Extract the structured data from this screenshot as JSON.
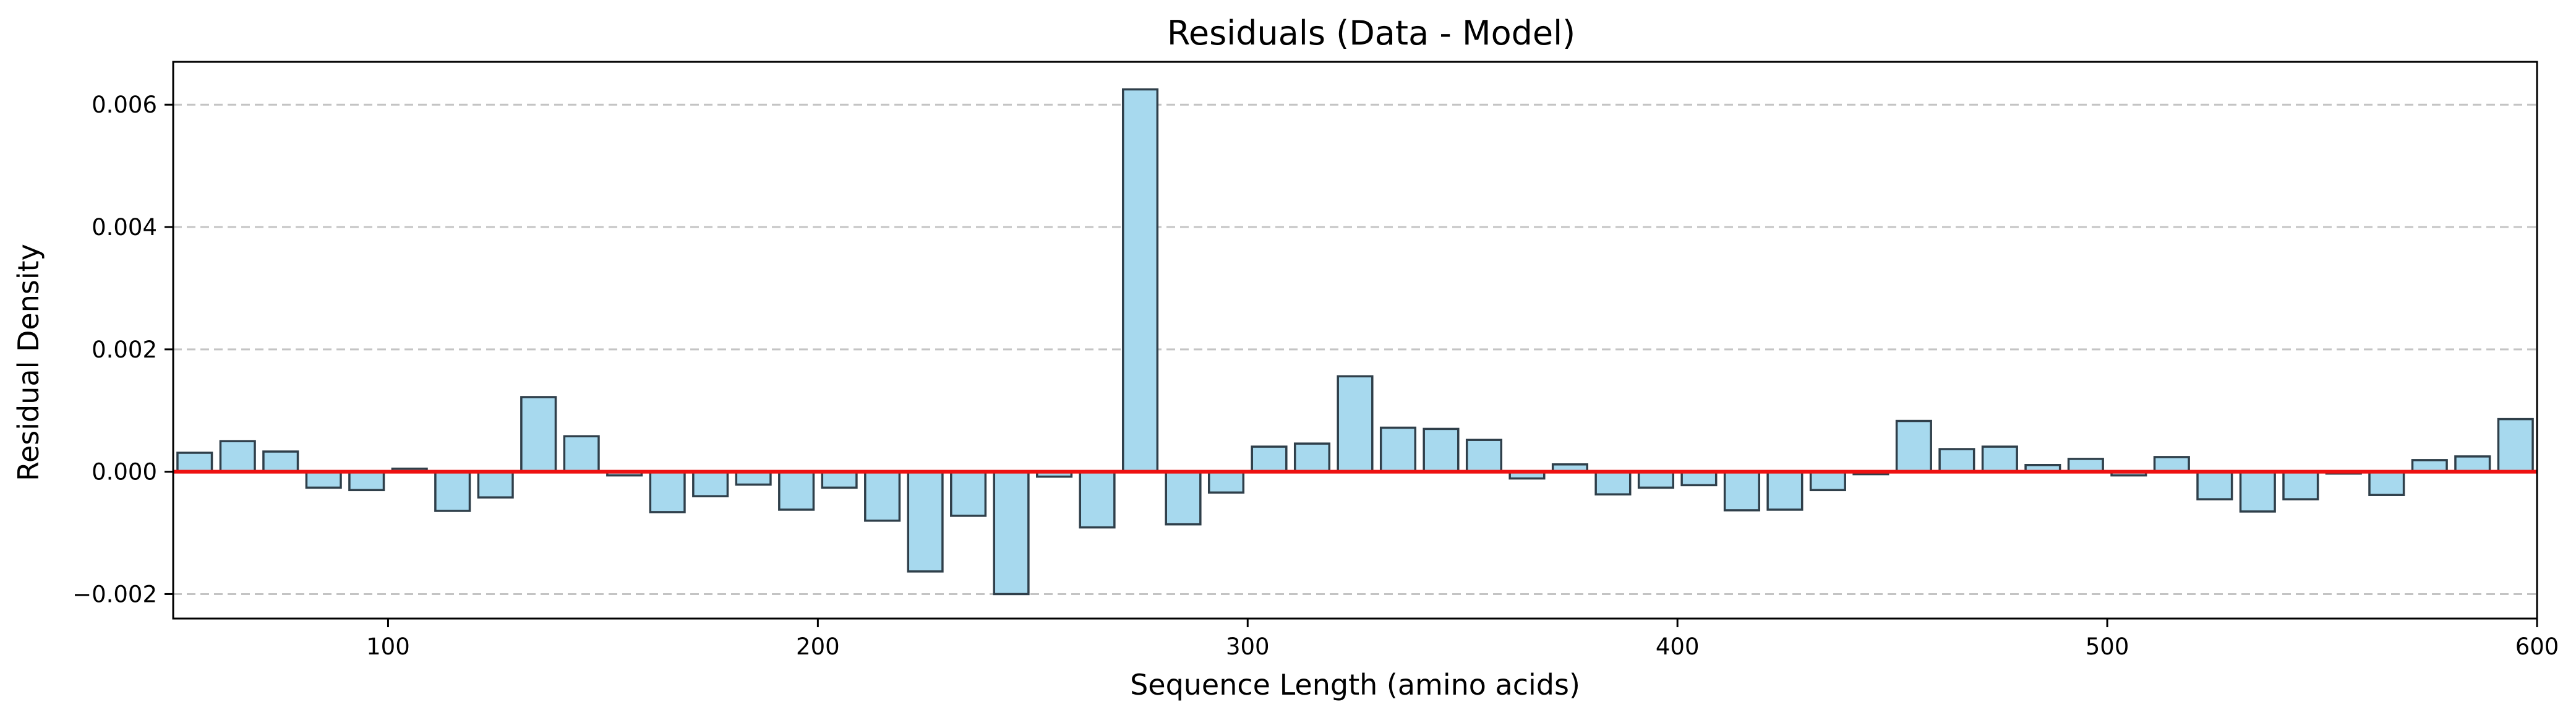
{
  "chart_data": {
    "type": "bar",
    "title": "Residuals (Data - Model)",
    "xlabel": "Sequence Length (amino acids)",
    "ylabel": "Residual Density",
    "xlim": [
      50,
      600
    ],
    "ylim": [
      -0.0024,
      0.0067
    ],
    "bin_width": 10,
    "x": [
      55,
      65,
      75,
      85,
      95,
      105,
      115,
      125,
      135,
      145,
      155,
      165,
      175,
      185,
      195,
      205,
      215,
      225,
      235,
      245,
      255,
      265,
      275,
      285,
      295,
      305,
      315,
      325,
      335,
      345,
      355,
      365,
      375,
      385,
      395,
      405,
      415,
      425,
      435,
      445,
      455,
      465,
      475,
      485,
      495,
      505,
      515,
      525,
      535,
      545,
      555,
      565,
      575,
      585,
      595
    ],
    "values": [
      0.00031,
      0.0005,
      0.00033,
      -0.00026,
      -0.0003,
      5e-05,
      -0.00064,
      -0.00042,
      0.00122,
      0.00058,
      -6e-05,
      -0.00066,
      -0.0004,
      -0.00021,
      -0.00062,
      -0.00026,
      -0.0008,
      -0.00163,
      -0.00072,
      -0.002,
      -8e-05,
      -0.00091,
      0.00625,
      -0.00086,
      -0.00034,
      0.00041,
      0.00046,
      0.00156,
      0.00072,
      0.0007,
      0.00052,
      -0.00011,
      0.00012,
      -0.00037,
      -0.00026,
      -0.00022,
      -0.00063,
      -0.00062,
      -0.0003,
      -4e-05,
      0.00083,
      0.00037,
      0.00041,
      0.00011,
      0.00021,
      -6e-05,
      0.00024,
      -0.00045,
      -0.00065,
      -0.00045,
      -3e-05,
      -0.00038,
      0.00019,
      0.00025,
      0.00086
    ],
    "x_ticks": [
      100,
      200,
      300,
      400,
      500,
      600
    ],
    "y_ticks": [
      -0.002,
      0.0,
      0.002,
      0.004,
      0.006
    ],
    "x_tick_labels": [
      "100",
      "200",
      "300",
      "400",
      "500",
      "600"
    ],
    "y_tick_labels": [
      "−0.002",
      "0.000",
      "0.002",
      "0.004",
      "0.006"
    ],
    "grid": "horizontal dashed",
    "reference_line": 0,
    "colors": {
      "bar_fill": "#a7d9ee",
      "bar_edge": "#2f3f4a",
      "zero_line": "#ee1111",
      "grid": "#c4c4c4"
    }
  }
}
